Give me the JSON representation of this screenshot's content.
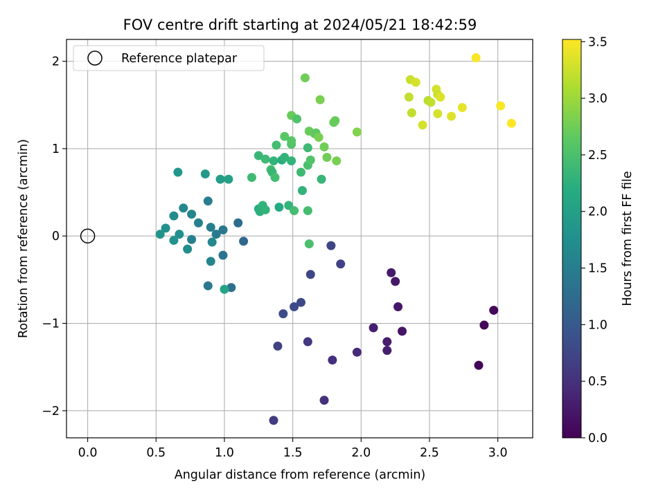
{
  "chart_data": {
    "type": "scatter",
    "title": "FOV centre drift starting at 2024/05/21 18:42:59",
    "xlabel": "Angular distance from reference (arcmin)",
    "ylabel": "Rotation from reference (arcmin)",
    "xlim": [
      -0.155,
      3.255
    ],
    "ylim": [
      -2.31,
      2.25
    ],
    "xticks": [
      0.0,
      0.5,
      1.0,
      1.5,
      2.0,
      2.5,
      3.0
    ],
    "xtick_labels": [
      "0.0",
      "0.5",
      "1.0",
      "1.5",
      "2.0",
      "2.5",
      "3.0"
    ],
    "yticks": [
      -2,
      -1,
      0,
      1,
      2
    ],
    "ytick_labels": [
      "−2",
      "−1",
      "0",
      "1",
      "2"
    ],
    "grid": true,
    "colormap": "viridis",
    "colorbar": {
      "label": "Hours from first FF file",
      "range": [
        0.0,
        3.52
      ],
      "ticks": [
        0.0,
        0.5,
        1.0,
        1.5,
        2.0,
        2.5,
        3.0,
        3.5
      ],
      "tick_labels": [
        "0.0",
        "0.5",
        "1.0",
        "1.5",
        "2.0",
        "2.5",
        "3.0",
        "3.5"
      ]
    },
    "legend": {
      "placement": "top-left",
      "entries": [
        "Reference platepar"
      ]
    },
    "reference_point": {
      "x": 0.0,
      "y": 0.0,
      "label": "Reference platepar"
    },
    "points": [
      {
        "x": 2.86,
        "y": -1.48,
        "h": 0.02
      },
      {
        "x": 2.9,
        "y": -1.02,
        "h": 0.05
      },
      {
        "x": 2.97,
        "y": -0.85,
        "h": 0.08
      },
      {
        "x": 2.3,
        "y": -1.09,
        "h": 0.2
      },
      {
        "x": 2.27,
        "y": -0.81,
        "h": 0.22
      },
      {
        "x": 2.25,
        "y": -0.52,
        "h": 0.24
      },
      {
        "x": 2.22,
        "y": -0.42,
        "h": 0.26
      },
      {
        "x": 2.19,
        "y": -1.21,
        "h": 0.28
      },
      {
        "x": 2.19,
        "y": -1.31,
        "h": 0.3
      },
      {
        "x": 2.09,
        "y": -1.05,
        "h": 0.32
      },
      {
        "x": 1.97,
        "y": -1.33,
        "h": 0.42
      },
      {
        "x": 1.79,
        "y": -1.42,
        "h": 0.48
      },
      {
        "x": 1.73,
        "y": -1.88,
        "h": 0.5
      },
      {
        "x": 1.85,
        "y": -0.32,
        "h": 0.7
      },
      {
        "x": 1.78,
        "y": -0.11,
        "h": 0.72
      },
      {
        "x": 1.63,
        "y": -0.44,
        "h": 0.75
      },
      {
        "x": 1.61,
        "y": -1.21,
        "h": 0.6
      },
      {
        "x": 1.56,
        "y": -0.76,
        "h": 0.78
      },
      {
        "x": 1.51,
        "y": -0.81,
        "h": 0.8
      },
      {
        "x": 1.43,
        "y": -0.89,
        "h": 0.82
      },
      {
        "x": 1.39,
        "y": -1.26,
        "h": 0.7
      },
      {
        "x": 1.36,
        "y": -2.11,
        "h": 0.62
      },
      {
        "x": 1.14,
        "y": -0.06,
        "h": 1.2
      },
      {
        "x": 1.1,
        "y": 0.15,
        "h": 1.25
      },
      {
        "x": 1.05,
        "y": -0.59,
        "h": 1.3
      },
      {
        "x": 0.99,
        "y": -0.22,
        "h": 1.35
      },
      {
        "x": 0.99,
        "y": 0.07,
        "h": 1.4
      },
      {
        "x": 0.94,
        "y": 0.02,
        "h": 1.45
      },
      {
        "x": 0.9,
        "y": 0.1,
        "h": 1.5
      },
      {
        "x": 0.88,
        "y": 0.4,
        "h": 1.5
      },
      {
        "x": 0.88,
        "y": -0.57,
        "h": 1.4
      },
      {
        "x": 0.9,
        "y": -0.29,
        "h": 1.6
      },
      {
        "x": 0.91,
        "y": -0.07,
        "h": 1.65
      },
      {
        "x": 0.81,
        "y": 0.15,
        "h": 1.55
      },
      {
        "x": 0.76,
        "y": 0.25,
        "h": 1.6
      },
      {
        "x": 0.76,
        "y": -0.04,
        "h": 1.55
      },
      {
        "x": 0.73,
        "y": -0.15,
        "h": 1.7
      },
      {
        "x": 0.7,
        "y": 0.32,
        "h": 1.65
      },
      {
        "x": 0.67,
        "y": 0.02,
        "h": 1.75
      },
      {
        "x": 0.63,
        "y": 0.23,
        "h": 1.7
      },
      {
        "x": 0.63,
        "y": -0.05,
        "h": 1.8
      },
      {
        "x": 0.57,
        "y": 0.09,
        "h": 1.75
      },
      {
        "x": 0.53,
        "y": 0.02,
        "h": 1.8
      },
      {
        "x": 0.66,
        "y": 0.73,
        "h": 1.85
      },
      {
        "x": 0.86,
        "y": 0.71,
        "h": 1.9
      },
      {
        "x": 0.97,
        "y": 0.65,
        "h": 1.95
      },
      {
        "x": 1.03,
        "y": 0.65,
        "h": 2.0
      },
      {
        "x": 1.0,
        "y": -0.61,
        "h": 2.05
      },
      {
        "x": 1.2,
        "y": 0.67,
        "h": 2.4
      },
      {
        "x": 1.25,
        "y": 0.31,
        "h": 2.2
      },
      {
        "x": 1.26,
        "y": 0.28,
        "h": 2.25
      },
      {
        "x": 1.28,
        "y": 0.35,
        "h": 2.3
      },
      {
        "x": 1.3,
        "y": 0.3,
        "h": 2.3
      },
      {
        "x": 1.25,
        "y": 0.92,
        "h": 2.35
      },
      {
        "x": 1.3,
        "y": 0.88,
        "h": 2.4
      },
      {
        "x": 1.34,
        "y": 0.76,
        "h": 2.45
      },
      {
        "x": 1.35,
        "y": 0.73,
        "h": 2.35
      },
      {
        "x": 1.37,
        "y": 0.67,
        "h": 2.45
      },
      {
        "x": 1.36,
        "y": 0.86,
        "h": 2.3
      },
      {
        "x": 1.38,
        "y": 1.04,
        "h": 2.45
      },
      {
        "x": 1.4,
        "y": 0.33,
        "h": 2.15
      },
      {
        "x": 1.42,
        "y": 0.87,
        "h": 2.2
      },
      {
        "x": 1.44,
        "y": 0.9,
        "h": 2.3
      },
      {
        "x": 1.44,
        "y": 1.14,
        "h": 2.6
      },
      {
        "x": 1.47,
        "y": 0.35,
        "h": 2.3
      },
      {
        "x": 1.49,
        "y": 0.86,
        "h": 2.3
      },
      {
        "x": 1.49,
        "y": 1.05,
        "h": 2.55
      },
      {
        "x": 1.49,
        "y": 1.09,
        "h": 2.6
      },
      {
        "x": 1.49,
        "y": 1.38,
        "h": 2.7
      },
      {
        "x": 1.51,
        "y": 0.29,
        "h": 2.45
      },
      {
        "x": 1.53,
        "y": 1.34,
        "h": 2.55
      },
      {
        "x": 1.56,
        "y": 0.73,
        "h": 2.4
      },
      {
        "x": 1.57,
        "y": 0.52,
        "h": 2.3
      },
      {
        "x": 1.59,
        "y": 1.81,
        "h": 2.75
      },
      {
        "x": 1.61,
        "y": 0.81,
        "h": 2.5
      },
      {
        "x": 1.61,
        "y": 1.01,
        "h": 2.4
      },
      {
        "x": 1.61,
        "y": 0.29,
        "h": 2.45
      },
      {
        "x": 1.62,
        "y": -0.09,
        "h": 2.5
      },
      {
        "x": 1.62,
        "y": 1.2,
        "h": 2.7
      },
      {
        "x": 1.63,
        "y": 0.87,
        "h": 2.55
      },
      {
        "x": 1.66,
        "y": 1.17,
        "h": 2.7
      },
      {
        "x": 1.67,
        "y": 1.18,
        "h": 2.65
      },
      {
        "x": 1.69,
        "y": 1.13,
        "h": 2.8
      },
      {
        "x": 1.7,
        "y": 1.56,
        "h": 2.8
      },
      {
        "x": 1.71,
        "y": 0.65,
        "h": 2.35
      },
      {
        "x": 1.73,
        "y": 1.02,
        "h": 2.75
      },
      {
        "x": 1.75,
        "y": 0.9,
        "h": 2.75
      },
      {
        "x": 1.8,
        "y": 1.3,
        "h": 2.7
      },
      {
        "x": 1.81,
        "y": 1.32,
        "h": 2.7
      },
      {
        "x": 1.82,
        "y": 0.86,
        "h": 2.8
      },
      {
        "x": 1.97,
        "y": 1.19,
        "h": 2.85
      },
      {
        "x": 2.35,
        "y": 1.59,
        "h": 3.2
      },
      {
        "x": 2.36,
        "y": 1.79,
        "h": 3.25
      },
      {
        "x": 2.37,
        "y": 1.41,
        "h": 3.2
      },
      {
        "x": 2.4,
        "y": 1.76,
        "h": 3.3
      },
      {
        "x": 2.45,
        "y": 1.27,
        "h": 3.3
      },
      {
        "x": 2.49,
        "y": 1.55,
        "h": 3.15
      },
      {
        "x": 2.51,
        "y": 1.53,
        "h": 3.2
      },
      {
        "x": 2.55,
        "y": 1.68,
        "h": 3.3
      },
      {
        "x": 2.56,
        "y": 1.62,
        "h": 3.25
      },
      {
        "x": 2.56,
        "y": 1.4,
        "h": 3.3
      },
      {
        "x": 2.58,
        "y": 1.59,
        "h": 3.35
      },
      {
        "x": 2.66,
        "y": 1.37,
        "h": 3.35
      },
      {
        "x": 2.74,
        "y": 1.47,
        "h": 3.4
      },
      {
        "x": 2.84,
        "y": 2.04,
        "h": 3.5
      },
      {
        "x": 3.02,
        "y": 1.49,
        "h": 3.5
      },
      {
        "x": 3.1,
        "y": 1.29,
        "h": 3.52
      }
    ]
  }
}
